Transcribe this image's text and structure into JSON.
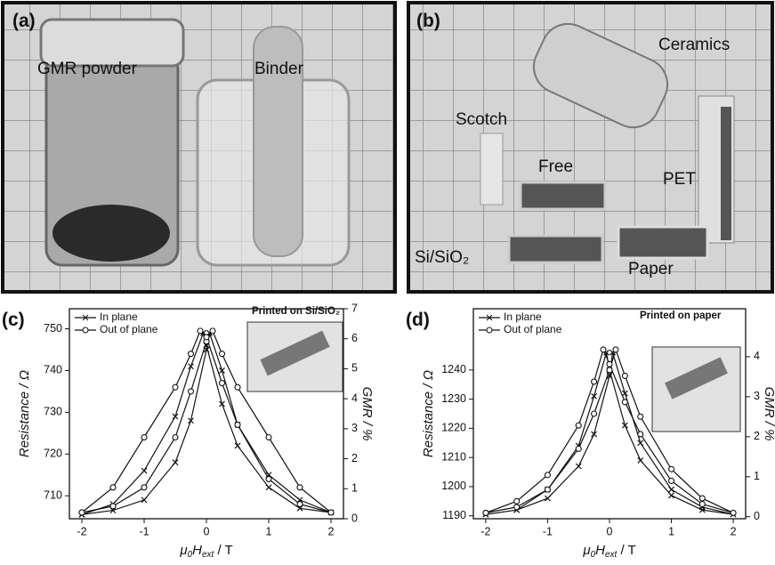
{
  "panels": [
    {
      "label": "(a)",
      "texts": [
        "GMR powder",
        "Binder"
      ]
    },
    {
      "label": "(b)",
      "texts": [
        "Ceramics",
        "Scotch",
        "Free",
        "PET",
        "Si/SiO₂",
        "Paper"
      ]
    }
  ],
  "chart_data": [
    {
      "type": "line",
      "label": "(c)",
      "inset_caption": "Printed on Si/SiO₂",
      "ylabel": "Resistance / Ω",
      "y2label": "GMR / %",
      "xlabel": [
        "μ",
        "0",
        "H",
        "ext",
        " / T"
      ],
      "xlim": [
        -2.2,
        2.2
      ],
      "xticks": [
        -2,
        -1,
        0,
        1,
        2
      ],
      "ylim": [
        704.5,
        754.8
      ],
      "yticks": [
        710,
        720,
        730,
        740,
        750
      ],
      "y2lim": [
        0,
        7
      ],
      "y2ticks": [
        0,
        1,
        2,
        3,
        4,
        5,
        6,
        7
      ],
      "series": [
        {
          "name": "In plane",
          "color": "#111111",
          "marker": "x",
          "x": [
            -2,
            -1.5,
            -1,
            -0.5,
            -0.25,
            0,
            0.05,
            0.25,
            0.5,
            1,
            1.5,
            2,
            1.5,
            1,
            0.5,
            0.25,
            0,
            -0.05,
            -0.25,
            -0.5,
            -1,
            -1.5,
            -2
          ],
          "values": [
            705.5,
            706.5,
            709,
            718,
            728,
            745,
            749,
            740,
            727,
            715,
            709,
            706,
            707,
            712,
            722,
            732,
            746,
            749,
            741,
            729,
            716,
            708,
            705.5
          ]
        },
        {
          "name": "Out of plane",
          "color": "#111111",
          "marker": "o",
          "x": [
            -2,
            -1.5,
            -1,
            -0.5,
            -0.25,
            0,
            0.1,
            0.25,
            0.5,
            1,
            1.5,
            2,
            1.5,
            1,
            0.5,
            0.25,
            0,
            -0.1,
            -0.25,
            -0.5,
            -1,
            -1.5,
            -2
          ],
          "values": [
            706,
            707.5,
            712,
            724,
            735,
            747,
            749.5,
            744,
            736,
            724,
            712,
            706,
            708,
            714,
            727,
            737,
            748,
            749.5,
            744,
            736,
            724,
            712,
            706
          ]
        }
      ]
    },
    {
      "type": "line",
      "label": "(d)",
      "inset_caption": "Printed on paper",
      "ylabel": "Resistance / Ω",
      "y2label": "GMR / %",
      "xlabel": [
        "μ",
        "0",
        "H",
        "ext",
        " / T"
      ],
      "xlim": [
        -2.2,
        2.2
      ],
      "xticks": [
        -2,
        -1,
        0,
        1,
        2
      ],
      "ylim": [
        1189,
        1261
      ],
      "yticks": [
        1190,
        1200,
        1210,
        1220,
        1230,
        1240
      ],
      "y2lim": [
        -0.05,
        5.2
      ],
      "y2ticks": [
        0,
        1,
        2,
        3,
        4
      ],
      "series": [
        {
          "name": "In plane",
          "color": "#111111",
          "marker": "x",
          "x": [
            -2,
            -1.5,
            -1,
            -0.5,
            -0.25,
            0,
            0.05,
            0.25,
            0.5,
            1,
            1.5,
            2,
            1.5,
            1,
            0.5,
            0.25,
            0,
            -0.05,
            -0.25,
            -0.5,
            -1,
            -1.5,
            -2
          ],
          "values": [
            1190.5,
            1192,
            1196,
            1207,
            1218,
            1238,
            1246,
            1232,
            1215,
            1199,
            1193,
            1190.5,
            1192,
            1197,
            1209,
            1221,
            1240,
            1246,
            1231,
            1214,
            1199,
            1192,
            1190.5
          ]
        },
        {
          "name": "Out of plane",
          "color": "#111111",
          "marker": "o",
          "x": [
            -2,
            -1.5,
            -1,
            -0.5,
            -0.25,
            0,
            0.1,
            0.25,
            0.5,
            1,
            1.5,
            2,
            1.5,
            1,
            0.5,
            0.25,
            0,
            -0.1,
            -0.25,
            -0.5,
            -1,
            -1.5,
            -2
          ],
          "values": [
            1191,
            1193,
            1199,
            1213,
            1225,
            1240,
            1247,
            1238,
            1224,
            1206,
            1196,
            1191,
            1194,
            1202,
            1218,
            1229,
            1242,
            1247,
            1236,
            1221,
            1204,
            1195,
            1191
          ]
        }
      ]
    }
  ]
}
